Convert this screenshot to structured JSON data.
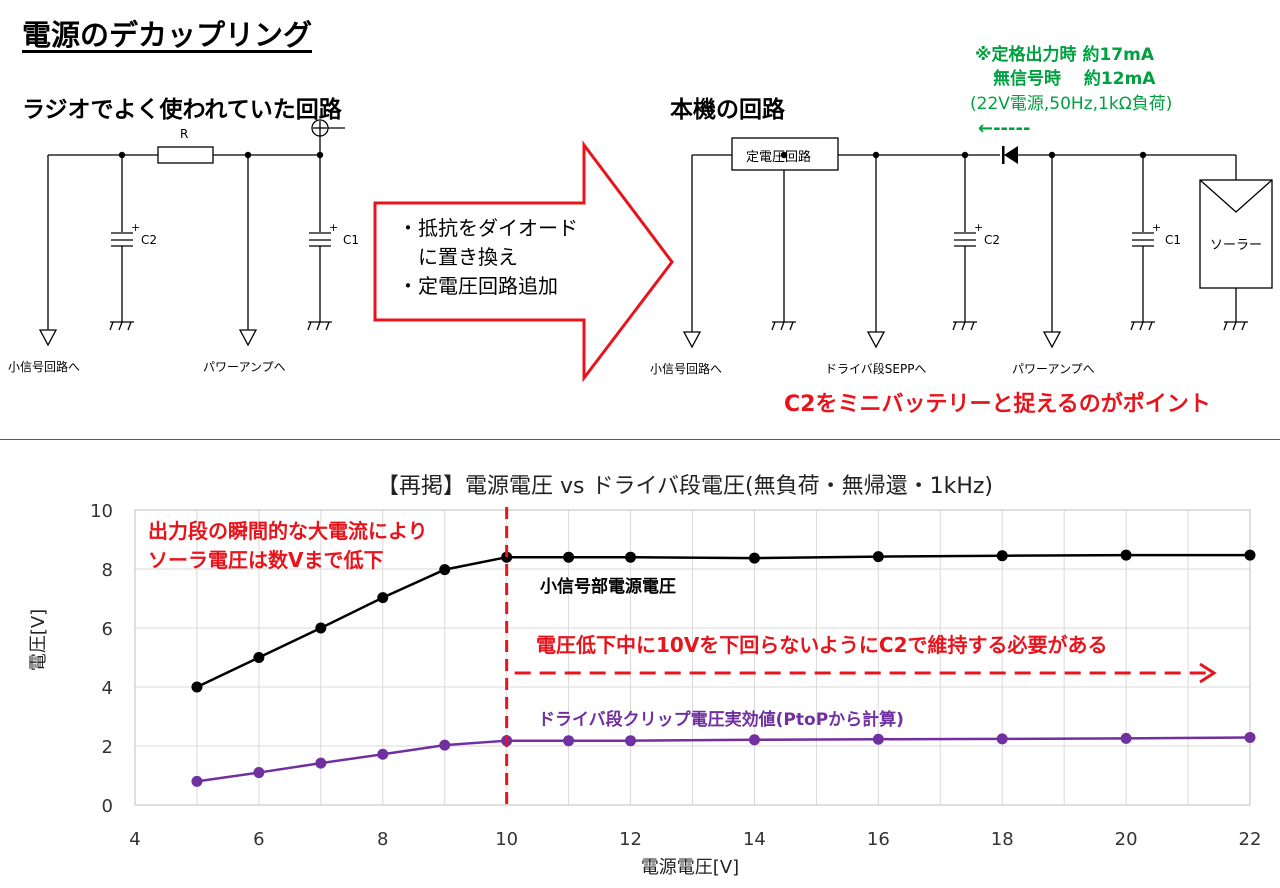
{
  "page_title": "電源のデカップリング",
  "radio_circuit": {
    "heading": "ラジオでよく使われていた回路",
    "resistor_label": "R",
    "cap_c2_label": "C2",
    "cap_c1_label": "C1",
    "out_small_signal": "小信号回路へ",
    "out_power_amp": "パワーアンプへ"
  },
  "arrow_box": {
    "lines": [
      "・抵抗をダイオード",
      "　に置き換え",
      "・定電圧回路追加"
    ]
  },
  "this_circuit": {
    "heading": "本機の回路",
    "regulator_label": "定電圧回路",
    "cap_c2_label": "C2",
    "cap_c1_label": "C1",
    "solar_label": "ソーラー",
    "out_small_signal": "小信号回路へ",
    "out_driver": "ドライバ段SEPPへ",
    "out_power_amp": "パワーアンプへ"
  },
  "current_note": {
    "line1": "※定格出力時 約17mA",
    "line2": "無信号時　 約12mA",
    "line3": "(22V電源,50Hz,1kΩ負荷)",
    "arrow": "←-----"
  },
  "point_note": "C2をミニバッテリーと捉えるのがポイント",
  "colors": {
    "accent_red": "#e8141c",
    "note_green": "#00a040",
    "series_black": "#000000",
    "series_purple": "#7030a0",
    "grid": "#d9d9d9"
  },
  "chart_data": {
    "type": "line",
    "title": "【再掲】電源電圧 vs ドライバ段電圧(無負荷・無帰還・1kHz)",
    "xlabel": "電源電圧[V]",
    "ylabel": "電圧[V]",
    "xlim": [
      4,
      22
    ],
    "ylim": [
      0,
      10
    ],
    "x_ticks": [
      4,
      6,
      8,
      10,
      12,
      14,
      16,
      18,
      20,
      22
    ],
    "y_ticks": [
      0,
      2,
      4,
      6,
      8,
      10
    ],
    "grid": true,
    "series": [
      {
        "name": "小信号部電源電圧",
        "color": "#000000",
        "x": [
          5,
          6,
          7,
          8,
          9,
          10,
          11,
          12,
          14,
          16,
          18,
          20,
          22
        ],
        "y": [
          4.0,
          5.0,
          6.0,
          7.03,
          7.98,
          8.4,
          8.4,
          8.4,
          8.37,
          8.42,
          8.45,
          8.47,
          8.47
        ]
      },
      {
        "name": "ドライバ段クリップ電圧実効値(PtoPから計算)",
        "color": "#7030a0",
        "x": [
          5,
          6,
          7,
          8,
          9,
          10,
          11,
          12,
          14,
          16,
          18,
          20,
          22
        ],
        "y": [
          0.8,
          1.1,
          1.42,
          1.72,
          2.03,
          2.18,
          2.18,
          2.18,
          2.21,
          2.23,
          2.24,
          2.26,
          2.29
        ]
      }
    ],
    "annotations": {
      "drop_note_1": "出力段の瞬間的な大電流により",
      "drop_note_2": "ソーラ電圧は数Vまで低下",
      "hold_note": "電圧低下中に10Vを下回らないようにC2で維持する必要がある",
      "marker_x": 10
    }
  }
}
